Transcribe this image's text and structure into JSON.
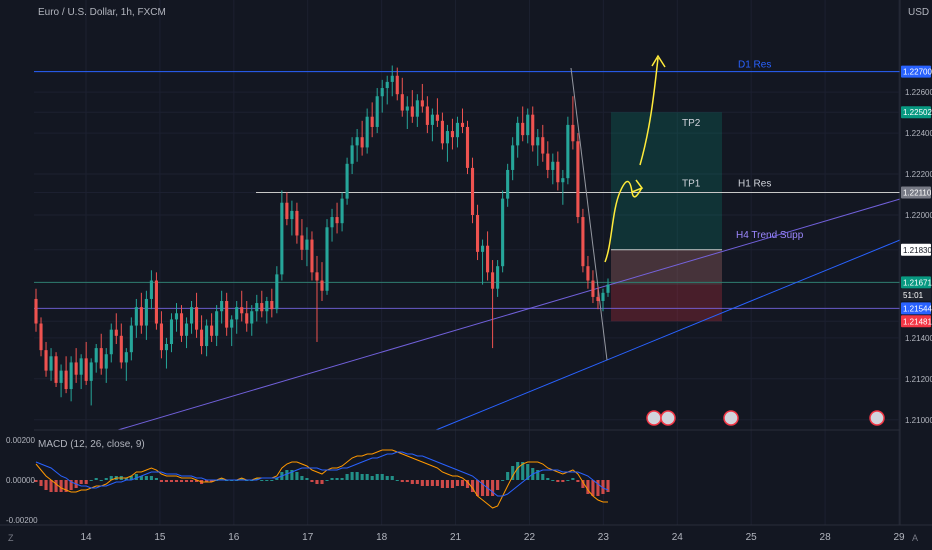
{
  "header": {
    "symbol_label": "Euro / U.S. Dollar, 1h, FXCM",
    "currency": "USD",
    "macd_label": "MACD (12, 26, close, 9)"
  },
  "bottom": {
    "left_icon": "Z",
    "right_icon": "A"
  },
  "chart_data": {
    "type": "candlestick",
    "price_axis": {
      "ylim": [
        1.2095,
        1.2305
      ],
      "ticks": [
        "1.22700",
        "1.22600",
        "1.22502",
        "1.22400",
        "1.22200",
        "1.22110",
        "1.22000",
        "1.21830",
        "1.21671",
        "1.21544",
        "1.21481",
        "1.21400",
        "1.21200",
        "1.21000"
      ],
      "tick_values": [
        1.227,
        1.226,
        1.22502,
        1.224,
        1.222,
        1.2211,
        1.22,
        1.2183,
        1.21671,
        1.21544,
        1.21481,
        1.214,
        1.212,
        1.21
      ]
    },
    "labels": [
      {
        "value": 1.227,
        "text": "1.22700",
        "color": "#2962ff"
      },
      {
        "value": 1.22502,
        "text": "1.22502",
        "color": "#089981"
      },
      {
        "value": 1.2211,
        "text": "1.22110",
        "color": "#787b86"
      },
      {
        "value": 1.2183,
        "text": "1.21830",
        "color": "#ffffff",
        "textColor": "#131722"
      },
      {
        "value": 1.21671,
        "text": "1.21671",
        "color": "#089981"
      },
      {
        "value": 1.2161,
        "text": "51:01",
        "color": "#1e222d"
      },
      {
        "value": 1.21544,
        "text": "1.21544",
        "color": "#2962ff"
      },
      {
        "value": 1.21481,
        "text": "1.21481",
        "color": "#f23645"
      }
    ],
    "x_axis": {
      "ticks": [
        "14",
        "15",
        "16",
        "17",
        "18",
        "21",
        "22",
        "23",
        "24",
        "25",
        "28",
        "29"
      ]
    },
    "levels": [
      {
        "name": "D1 Res",
        "value": 1.227,
        "color": "#2962ff"
      },
      {
        "name": "H1 Res",
        "value": 1.2211,
        "color": "#c8c8c8"
      },
      {
        "name": "",
        "value": 1.21544,
        "color": "#7b68ee"
      },
      {
        "name": "",
        "value": 1.21671,
        "color": "#2e7d6e"
      }
    ],
    "annotations": {
      "tp1": "TP1",
      "tp2": "TP2",
      "h4": "H4 Trend Supp",
      "position": {
        "entry": 1.2166,
        "stop": 1.21481,
        "tp1": 1.2183,
        "tp2": 1.22502
      }
    },
    "macd_axis": {
      "ticks": [
        "0.00200",
        "0.00000",
        "-0.00200"
      ],
      "tick_values": [
        0.002,
        0.0,
        -0.002
      ]
    },
    "candles": [
      [
        1.2159,
        1.2164,
        1.2143,
        1.2147
      ],
      [
        1.2147,
        1.215,
        1.2131,
        1.2134
      ],
      [
        1.2134,
        1.2138,
        1.2121,
        1.2124
      ],
      [
        1.2124,
        1.2135,
        1.2119,
        1.2131
      ],
      [
        1.2131,
        1.2133,
        1.2116,
        1.2118
      ],
      [
        1.2118,
        1.2127,
        1.2111,
        1.2124
      ],
      [
        1.2124,
        1.2131,
        1.2113,
        1.2115
      ],
      [
        1.2115,
        1.2131,
        1.2109,
        1.2128
      ],
      [
        1.2128,
        1.2135,
        1.2118,
        1.2122
      ],
      [
        1.2122,
        1.2132,
        1.2115,
        1.213
      ],
      [
        1.213,
        1.2138,
        1.2117,
        1.2119
      ],
      [
        1.2119,
        1.213,
        1.2107,
        1.2128
      ],
      [
        1.2128,
        1.2137,
        1.2123,
        1.2135
      ],
      [
        1.2135,
        1.2142,
        1.2122,
        1.2125
      ],
      [
        1.2125,
        1.2135,
        1.2118,
        1.2132
      ],
      [
        1.2132,
        1.2147,
        1.2128,
        1.2144
      ],
      [
        1.2144,
        1.2152,
        1.2137,
        1.2141
      ],
      [
        1.2141,
        1.2147,
        1.2125,
        1.2128
      ],
      [
        1.2128,
        1.2135,
        1.2119,
        1.2133
      ],
      [
        1.2133,
        1.215,
        1.2129,
        1.2146
      ],
      [
        1.2146,
        1.2159,
        1.214,
        1.2155
      ],
      [
        1.2155,
        1.2162,
        1.2142,
        1.2146
      ],
      [
        1.2146,
        1.2163,
        1.2139,
        1.2159
      ],
      [
        1.2159,
        1.2173,
        1.2154,
        1.2168
      ],
      [
        1.2168,
        1.2172,
        1.2144,
        1.2147
      ],
      [
        1.2147,
        1.2153,
        1.213,
        1.2134
      ],
      [
        1.2134,
        1.214,
        1.2125,
        1.2137
      ],
      [
        1.2137,
        1.2152,
        1.2133,
        1.2149
      ],
      [
        1.2149,
        1.2157,
        1.2143,
        1.2152
      ],
      [
        1.2152,
        1.2156,
        1.2138,
        1.2141
      ],
      [
        1.2141,
        1.215,
        1.2135,
        1.2147
      ],
      [
        1.2147,
        1.2158,
        1.2142,
        1.2155
      ],
      [
        1.2155,
        1.2162,
        1.214,
        1.2144
      ],
      [
        1.2144,
        1.2151,
        1.2132,
        1.2136
      ],
      [
        1.2136,
        1.2149,
        1.2131,
        1.2146
      ],
      [
        1.2146,
        1.2152,
        1.2138,
        1.2141
      ],
      [
        1.2141,
        1.2156,
        1.2136,
        1.2153
      ],
      [
        1.2153,
        1.2163,
        1.2147,
        1.2158
      ],
      [
        1.2158,
        1.2162,
        1.2141,
        1.2145
      ],
      [
        1.2145,
        1.2151,
        1.2136,
        1.2149
      ],
      [
        1.2149,
        1.2158,
        1.2142,
        1.2155
      ],
      [
        1.2155,
        1.2163,
        1.2148,
        1.2152
      ],
      [
        1.2152,
        1.2158,
        1.2143,
        1.2147
      ],
      [
        1.2147,
        1.2156,
        1.2141,
        1.2153
      ],
      [
        1.2153,
        1.2161,
        1.2148,
        1.2157
      ],
      [
        1.2157,
        1.2163,
        1.215,
        1.2153
      ],
      [
        1.2153,
        1.216,
        1.2147,
        1.2158
      ],
      [
        1.2158,
        1.2164,
        1.215,
        1.2154
      ],
      [
        1.2154,
        1.2175,
        1.2152,
        1.2171
      ],
      [
        1.2171,
        1.2212,
        1.2168,
        1.2206
      ],
      [
        1.2206,
        1.2211,
        1.2195,
        1.2198
      ],
      [
        1.2198,
        1.2207,
        1.219,
        1.2202
      ],
      [
        1.2202,
        1.2206,
        1.2186,
        1.219
      ],
      [
        1.219,
        1.2198,
        1.2178,
        1.2183
      ],
      [
        1.2183,
        1.2194,
        1.2175,
        1.2188
      ],
      [
        1.2188,
        1.2192,
        1.2168,
        1.2172
      ],
      [
        1.2172,
        1.218,
        1.2138,
        1.2168
      ],
      [
        1.2168,
        1.2177,
        1.2158,
        1.2163
      ],
      [
        1.2163,
        1.2198,
        1.2161,
        1.2194
      ],
      [
        1.2194,
        1.2203,
        1.2187,
        1.2199
      ],
      [
        1.2199,
        1.2206,
        1.2191,
        1.2196
      ],
      [
        1.2196,
        1.2211,
        1.2192,
        1.2208
      ],
      [
        1.2208,
        1.2228,
        1.2205,
        1.2225
      ],
      [
        1.2225,
        1.2238,
        1.222,
        1.2234
      ],
      [
        1.2234,
        1.2242,
        1.2226,
        1.2238
      ],
      [
        1.2238,
        1.2246,
        1.2229,
        1.2233
      ],
      [
        1.2233,
        1.2252,
        1.223,
        1.2248
      ],
      [
        1.2248,
        1.2255,
        1.2238,
        1.2243
      ],
      [
        1.2243,
        1.2262,
        1.224,
        1.2258
      ],
      [
        1.2258,
        1.2266,
        1.225,
        1.2262
      ],
      [
        1.2262,
        1.2268,
        1.2254,
        1.2265
      ],
      [
        1.2265,
        1.2273,
        1.2258,
        1.2268
      ],
      [
        1.2268,
        1.2272,
        1.2256,
        1.2259
      ],
      [
        1.2259,
        1.2267,
        1.2248,
        1.2251
      ],
      [
        1.2251,
        1.2258,
        1.2242,
        1.2253
      ],
      [
        1.2253,
        1.2261,
        1.2245,
        1.2248
      ],
      [
        1.2248,
        1.2259,
        1.2243,
        1.2256
      ],
      [
        1.2256,
        1.2264,
        1.225,
        1.2253
      ],
      [
        1.2253,
        1.2258,
        1.224,
        1.2244
      ],
      [
        1.2244,
        1.2252,
        1.2236,
        1.2249
      ],
      [
        1.2249,
        1.2257,
        1.2243,
        1.2246
      ],
      [
        1.2246,
        1.225,
        1.2232,
        1.2235
      ],
      [
        1.2235,
        1.2244,
        1.2226,
        1.2241
      ],
      [
        1.2241,
        1.2247,
        1.2232,
        1.2238
      ],
      [
        1.2238,
        1.2248,
        1.2233,
        1.2245
      ],
      [
        1.2245,
        1.2252,
        1.224,
        1.2243
      ],
      [
        1.2243,
        1.2246,
        1.222,
        1.2223
      ],
      [
        1.2223,
        1.2228,
        1.2196,
        1.22
      ],
      [
        1.22,
        1.2205,
        1.2178,
        1.2182
      ],
      [
        1.2182,
        1.2188,
        1.2166,
        1.2185
      ],
      [
        1.2185,
        1.2192,
        1.2168,
        1.2172
      ],
      [
        1.2172,
        1.2178,
        1.2135,
        1.2164
      ],
      [
        1.2164,
        1.2178,
        1.216,
        1.2175
      ],
      [
        1.2175,
        1.2212,
        1.2172,
        1.2208
      ],
      [
        1.2208,
        1.2225,
        1.2204,
        1.2222
      ],
      [
        1.2222,
        1.2238,
        1.2217,
        1.2234
      ],
      [
        1.2234,
        1.2248,
        1.2228,
        1.2245
      ],
      [
        1.2245,
        1.2253,
        1.2236,
        1.2239
      ],
      [
        1.2239,
        1.2252,
        1.2235,
        1.2249
      ],
      [
        1.2249,
        1.2253,
        1.2231,
        1.2234
      ],
      [
        1.2234,
        1.2242,
        1.2224,
        1.2238
      ],
      [
        1.2238,
        1.2244,
        1.2226,
        1.223
      ],
      [
        1.223,
        1.2236,
        1.2218,
        1.2222
      ],
      [
        1.2222,
        1.223,
        1.2215,
        1.2226
      ],
      [
        1.2226,
        1.2231,
        1.2212,
        1.2216
      ],
      [
        1.2216,
        1.2222,
        1.2205,
        1.2218
      ],
      [
        1.2218,
        1.2248,
        1.2215,
        1.2244
      ],
      [
        1.2244,
        1.2258,
        1.2232,
        1.2236
      ],
      [
        1.2236,
        1.224,
        1.2196,
        1.2199
      ],
      [
        1.2199,
        1.2203,
        1.2172,
        1.2175
      ],
      [
        1.2175,
        1.218,
        1.2164,
        1.2168
      ],
      [
        1.2168,
        1.2173,
        1.2157,
        1.216
      ],
      [
        1.216,
        1.2165,
        1.2154,
        1.2158
      ],
      [
        1.2158,
        1.2164,
        1.2153,
        1.2162
      ],
      [
        1.2162,
        1.2169,
        1.216,
        1.2166
      ]
    ],
    "macd": [
      [
        0.0008,
        0.0009,
        -0.0001
      ],
      [
        0.0005,
        0.0008,
        -0.0003
      ],
      [
        0.0002,
        0.0007,
        -0.0005
      ],
      [
        0.0,
        0.0006,
        -0.0006
      ],
      [
        -0.0002,
        0.0004,
        -0.0006
      ],
      [
        -0.0004,
        0.0002,
        -0.0006
      ],
      [
        -0.0005,
        0.0001,
        -0.0006
      ],
      [
        -0.0006,
        -0.0001,
        -0.0005
      ],
      [
        -0.0006,
        -0.0002,
        -0.0004
      ],
      [
        -0.0005,
        -0.0003,
        -0.0002
      ],
      [
        -0.0005,
        -0.0003,
        -0.0002
      ],
      [
        -0.0004,
        -0.0004,
        0.0
      ],
      [
        -0.0003,
        -0.0004,
        0.0001
      ],
      [
        -0.0003,
        -0.0003,
        0.0
      ],
      [
        -0.0002,
        -0.0003,
        0.0001
      ],
      [
        0.0,
        -0.0002,
        0.0002
      ],
      [
        0.0001,
        -0.0001,
        0.0002
      ],
      [
        0.0001,
        -0.0001,
        0.0002
      ],
      [
        0.0001,
        0.0,
        0.0001
      ],
      [
        0.0002,
        0.0,
        0.0002
      ],
      [
        0.0004,
        0.0001,
        0.0003
      ],
      [
        0.0004,
        0.0002,
        0.0002
      ],
      [
        0.0005,
        0.0003,
        0.0002
      ],
      [
        0.0006,
        0.0004,
        0.0002
      ],
      [
        0.0005,
        0.0004,
        0.0001
      ],
      [
        0.0003,
        0.0004,
        -0.0001
      ],
      [
        0.0002,
        0.0003,
        -0.0001
      ],
      [
        0.0002,
        0.0003,
        -0.0001
      ],
      [
        0.0002,
        0.0003,
        -0.0001
      ],
      [
        0.0001,
        0.0002,
        -0.0001
      ],
      [
        0.0001,
        0.0002,
        -0.0001
      ],
      [
        0.0001,
        0.0002,
        -0.0001
      ],
      [
        0.0,
        0.0001,
        -0.0001
      ],
      [
        -0.0001,
        0.0001,
        -0.0002
      ],
      [
        -0.0001,
        0.0,
        -0.0001
      ],
      [
        -0.0001,
        0.0,
        -0.0001
      ],
      [
        0.0,
        0.0,
        0.0
      ],
      [
        0.0001,
        0.0,
        0.0001
      ],
      [
        0.0,
        0.0,
        0.0
      ],
      [
        0.0,
        0.0,
        0.0
      ],
      [
        0.0,
        0.0,
        0.0
      ],
      [
        0.0001,
        0.0,
        0.0001
      ],
      [
        0.0,
        0.0,
        0.0
      ],
      [
        0.0,
        0.0,
        0.0
      ],
      [
        0.0001,
        0.0,
        0.0001
      ],
      [
        0.0001,
        0.0001,
        0.0
      ],
      [
        0.0001,
        0.0001,
        0.0
      ],
      [
        0.0001,
        0.0001,
        0.0
      ],
      [
        0.0002,
        0.0001,
        0.0001
      ],
      [
        0.0006,
        0.0002,
        0.0004
      ],
      [
        0.0008,
        0.0003,
        0.0005
      ],
      [
        0.0009,
        0.0004,
        0.0005
      ],
      [
        0.0009,
        0.0005,
        0.0004
      ],
      [
        0.0008,
        0.0006,
        0.0002
      ],
      [
        0.0007,
        0.0006,
        0.0001
      ],
      [
        0.0005,
        0.0006,
        -0.0001
      ],
      [
        0.0004,
        0.0006,
        -0.0002
      ],
      [
        0.0003,
        0.0005,
        -0.0002
      ],
      [
        0.0005,
        0.0005,
        0.0
      ],
      [
        0.0006,
        0.0005,
        0.0001
      ],
      [
        0.0006,
        0.0005,
        0.0001
      ],
      [
        0.0007,
        0.0006,
        0.0001
      ],
      [
        0.0009,
        0.0006,
        0.0003
      ],
      [
        0.0011,
        0.0007,
        0.0004
      ],
      [
        0.0012,
        0.0008,
        0.0004
      ],
      [
        0.0012,
        0.0009,
        0.0003
      ],
      [
        0.0013,
        0.001,
        0.0003
      ],
      [
        0.0013,
        0.0011,
        0.0002
      ],
      [
        0.0014,
        0.0011,
        0.0003
      ],
      [
        0.0015,
        0.0012,
        0.0003
      ],
      [
        0.0015,
        0.0013,
        0.0002
      ],
      [
        0.0015,
        0.0013,
        0.0002
      ],
      [
        0.0014,
        0.0014,
        0.0
      ],
      [
        0.0013,
        0.0014,
        -0.0001
      ],
      [
        0.0012,
        0.0013,
        -0.0001
      ],
      [
        0.0011,
        0.0013,
        -0.0002
      ],
      [
        0.001,
        0.0012,
        -0.0002
      ],
      [
        0.0009,
        0.0012,
        -0.0003
      ],
      [
        0.0008,
        0.0011,
        -0.0003
      ],
      [
        0.0007,
        0.001,
        -0.0003
      ],
      [
        0.0006,
        0.0009,
        -0.0003
      ],
      [
        0.0004,
        0.0008,
        -0.0004
      ],
      [
        0.0003,
        0.0007,
        -0.0004
      ],
      [
        0.0002,
        0.0006,
        -0.0004
      ],
      [
        0.0002,
        0.0005,
        -0.0003
      ],
      [
        0.0001,
        0.0004,
        -0.0003
      ],
      [
        -0.0001,
        0.0003,
        -0.0004
      ],
      [
        -0.0004,
        0.0002,
        -0.0006
      ],
      [
        -0.0008,
        0.0,
        -0.0008
      ],
      [
        -0.001,
        -0.0002,
        -0.0008
      ],
      [
        -0.0012,
        -0.0004,
        -0.0008
      ],
      [
        -0.0014,
        -0.0006,
        -0.0008
      ],
      [
        -0.0013,
        -0.0008,
        -0.0005
      ],
      [
        -0.0008,
        -0.0008,
        0.0
      ],
      [
        -0.0003,
        -0.0007,
        0.0004
      ],
      [
        0.0002,
        -0.0005,
        0.0007
      ],
      [
        0.0006,
        -0.0003,
        0.0009
      ],
      [
        0.0008,
        -0.0001,
        0.0009
      ],
      [
        0.0009,
        0.0001,
        0.0008
      ],
      [
        0.0009,
        0.0003,
        0.0006
      ],
      [
        0.0009,
        0.0004,
        0.0005
      ],
      [
        0.0008,
        0.0005,
        0.0003
      ],
      [
        0.0006,
        0.0005,
        0.0001
      ],
      [
        0.0005,
        0.0005,
        0.0
      ],
      [
        0.0004,
        0.0005,
        -0.0001
      ],
      [
        0.0003,
        0.0004,
        -0.0001
      ],
      [
        0.0004,
        0.0004,
        0.0
      ],
      [
        0.0005,
        0.0004,
        0.0001
      ],
      [
        0.0003,
        0.0004,
        -0.0001
      ],
      [
        -0.0001,
        0.0003,
        -0.0004
      ],
      [
        -0.0005,
        0.0002,
        -0.0007
      ],
      [
        -0.0008,
        0.0,
        -0.0008
      ],
      [
        -0.001,
        -0.0002,
        -0.0008
      ],
      [
        -0.0011,
        -0.0004,
        -0.0007
      ],
      [
        -0.0011,
        -0.0005,
        -0.0006
      ]
    ]
  }
}
